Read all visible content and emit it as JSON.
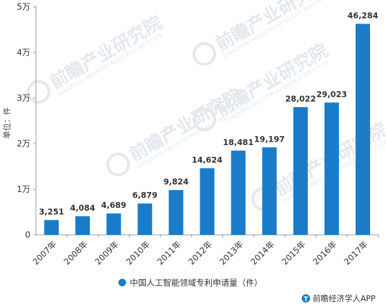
{
  "chart_data": {
    "type": "bar",
    "title": "",
    "xlabel": "",
    "ylabel": "单位：件",
    "categories": [
      "2007年",
      "2008年",
      "2009年",
      "2010年",
      "2011年",
      "2012年",
      "2013年",
      "2014年",
      "2015年",
      "2016年",
      "2017年"
    ],
    "series": [
      {
        "name": "中国人工智能领域专利申请量（件）",
        "values": [
          3251,
          4084,
          4689,
          6879,
          9824,
          14624,
          18481,
          19197,
          28022,
          29023,
          46284
        ],
        "labels": [
          "3,251",
          "4,084",
          "4,689",
          "6,879",
          "9,824",
          "14,624",
          "18,481",
          "19,197",
          "28,022",
          "29,023",
          "46,284"
        ]
      }
    ],
    "ylim": [
      0,
      50000
    ],
    "yticks": [
      0,
      10000,
      20000,
      30000,
      40000,
      50000
    ],
    "ytick_labels": [
      "0",
      "1万",
      "2万",
      "3万",
      "4万",
      "5万"
    ],
    "grid": false,
    "legend_position": "bottom",
    "bar_color": "#1a7cc9"
  },
  "watermark": {
    "text": "前瞻产业研究院",
    "subtext": "QIANZHAN INDUSTRY RESEARCH INSTITUTE"
  },
  "footer": {
    "source": "前瞻经济学人APP",
    "icon": "qianzhan-logo-icon"
  }
}
